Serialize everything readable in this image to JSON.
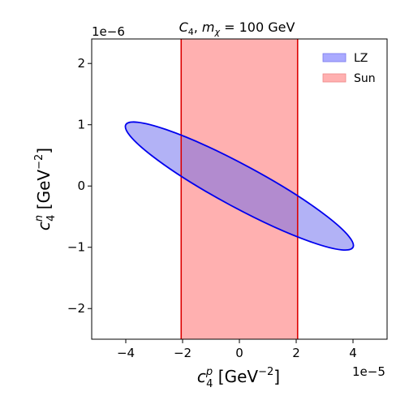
{
  "chart_data": {
    "type": "area",
    "title": {
      "prefix": "C",
      "prefix_sub": "4",
      "sep": ",  ",
      "m": "m",
      "m_sub": "χ",
      "rest": " = 100 GeV"
    },
    "xlabel": {
      "base": "c",
      "sup": "p",
      "sub": "4",
      "unit": " [GeV",
      "unit_sup": "−2",
      "close": "]"
    },
    "ylabel": {
      "base": "c",
      "sup": "n",
      "sub": "4",
      "unit": " [GeV",
      "unit_sup": "−2",
      "close": "]"
    },
    "x_offset_text": "1e−5",
    "y_offset_text": "1e−6",
    "xlim": [
      -5.2,
      5.2
    ],
    "ylim": [
      -2.5,
      2.4
    ],
    "x_scale": "1e-5",
    "y_scale": "1e-6",
    "xticks": [
      -4,
      -2,
      0,
      2,
      4
    ],
    "yticks": [
      -2,
      -1,
      0,
      1,
      2
    ],
    "xtick_labels": [
      "−4",
      "−2",
      "0",
      "2",
      "4"
    ],
    "ytick_labels": [
      "−2",
      "−1",
      "0",
      "1",
      "2"
    ],
    "grid": false,
    "legend_position": "top-right",
    "series": [
      {
        "name": "LZ",
        "kind": "ellipse",
        "center": [
          0.0,
          0.0
        ],
        "extreme_points": [
          [
            -4.0,
            1.0
          ],
          [
            4.0,
            -1.0
          ],
          [
            -3.4,
            1.13
          ],
          [
            3.4,
            -1.13
          ]
        ],
        "fill": "#aaaaff",
        "edge": "#0000ee"
      },
      {
        "name": "Sun",
        "kind": "vertical_band",
        "x_range": [
          -2.05,
          2.05
        ],
        "fill": "#ffb0b0",
        "edge": "#dd0000"
      }
    ]
  }
}
